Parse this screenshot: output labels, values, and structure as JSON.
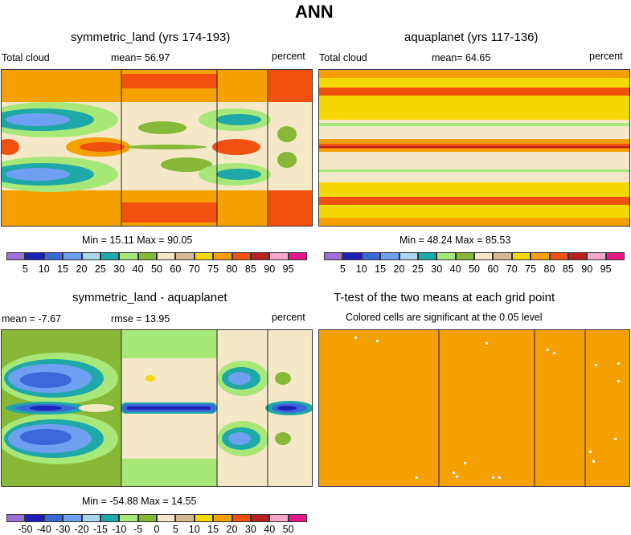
{
  "title": "ANN",
  "panels": [
    {
      "id": "sym",
      "title": "symmetric_land (yrs 174-193)",
      "left_label": "Total cloud",
      "mean_label": "mean=  56.97",
      "right_label": "percent",
      "minmax": "Min =  15.11 Max =  90.05"
    },
    {
      "id": "aqua",
      "title": "aquaplanet (yrs 117-136)",
      "left_label": "Total cloud",
      "mean_label": "mean=  64.65",
      "right_label": "percent",
      "minmax": "Min =  48.24 Max =  85.53"
    },
    {
      "id": "diff",
      "title": "symmetric_land - aquaplanet",
      "left_label": "mean =  -7.67",
      "mean_label": "rmse =  13.95",
      "right_label": "percent",
      "minmax": "Min = -54.88 Max =  14.55"
    },
    {
      "id": "ttest",
      "title": "T-test of the two means at each grid point",
      "subtitle": "Colored cells are significant at the 0.05 level"
    }
  ],
  "colorbars": {
    "abs": {
      "labels": [
        "5",
        "10",
        "15",
        "20",
        "25",
        "30",
        "40",
        "50",
        "60",
        "70",
        "75",
        "80",
        "85",
        "90",
        "95"
      ],
      "colors": [
        "#9a6fd6",
        "#1f1fb8",
        "#3b68d8",
        "#6f9ff0",
        "#a8d8ee",
        "#1fa8a8",
        "#a8e878",
        "#88b838",
        "#f4e8c8",
        "#d8b890",
        "#f4d800",
        "#f4a000",
        "#f05010",
        "#b82020",
        "#f4a8c8",
        "#e8188a"
      ]
    },
    "diff": {
      "labels": [
        "-50",
        "-40",
        "-30",
        "-20",
        "-15",
        "-10",
        "-5",
        "0",
        "5",
        "10",
        "15",
        "20",
        "30",
        "40",
        "50"
      ],
      "colors": [
        "#9a6fd6",
        "#1f1fb8",
        "#3b68d8",
        "#6f9ff0",
        "#a8d8ee",
        "#1fa8a8",
        "#a8e878",
        "#88b838",
        "#f4e8c8",
        "#d8b890",
        "#f4d800",
        "#f4a000",
        "#f05010",
        "#b82020",
        "#f4a8c8",
        "#e8188a"
      ]
    }
  },
  "chart_data": [
    {
      "type": "heatmap",
      "title": "symmetric_land (yrs 174-193)",
      "variable": "Total cloud",
      "units": "percent",
      "mean": 56.97,
      "min": 15.11,
      "max": 90.05,
      "levels": [
        5,
        10,
        15,
        20,
        25,
        30,
        40,
        50,
        60,
        70,
        75,
        80,
        85,
        90,
        95
      ]
    },
    {
      "type": "heatmap",
      "title": "aquaplanet (yrs 117-136)",
      "variable": "Total cloud",
      "units": "percent",
      "mean": 64.65,
      "min": 48.24,
      "max": 85.53,
      "levels": [
        5,
        10,
        15,
        20,
        25,
        30,
        40,
        50,
        60,
        70,
        75,
        80,
        85,
        90,
        95
      ]
    },
    {
      "type": "heatmap",
      "title": "symmetric_land - aquaplanet",
      "units": "percent",
      "mean": -7.67,
      "rmse": 13.95,
      "min": -54.88,
      "max": 14.55,
      "levels": [
        -50,
        -40,
        -30,
        -20,
        -15,
        -10,
        -5,
        0,
        5,
        10,
        15,
        20,
        30,
        40,
        50
      ]
    },
    {
      "type": "heatmap",
      "title": "T-test of the two means at each grid point",
      "subtitle": "Colored cells are significant at the 0.05 level"
    }
  ]
}
